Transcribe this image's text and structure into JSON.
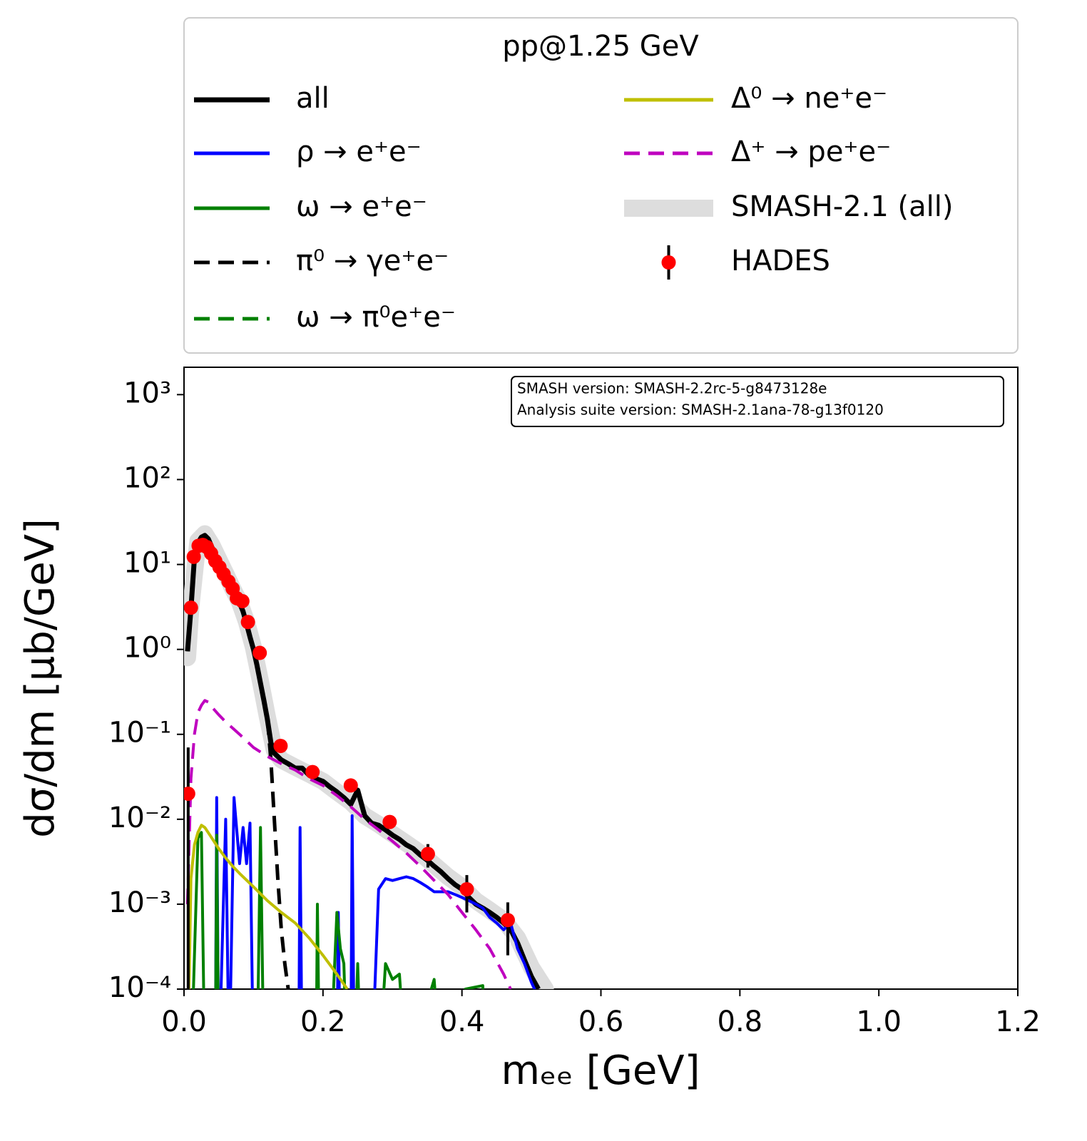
{
  "chart_data": {
    "type": "line",
    "log_y": true,
    "legend_title": "pp@1.25 GeV",
    "xlabel": "mₑₑ [GeV]",
    "ylabel": "dσ/dm [μb/GeV]",
    "annotation": [
      "SMASH version: SMASH-2.2rc-5-g8473128e",
      "Analysis suite version: SMASH-2.1ana-78-g13f0120"
    ],
    "xlim": [
      0,
      1.2
    ],
    "xticks": [
      {
        "value": 0,
        "label": "0.0"
      },
      0.2,
      0.4,
      0.6,
      0.8,
      {
        "value": 1,
        "label": "1.0"
      },
      1.2
    ],
    "ylim": [
      0.0001,
      2100
    ],
    "yticks": [
      {
        "value": 0.0001,
        "label": "10⁻⁴"
      },
      {
        "value": 0.001,
        "label": "10⁻³"
      },
      {
        "value": 0.01,
        "label": "10⁻²"
      },
      {
        "value": 0.1,
        "label": "10⁻¹"
      },
      {
        "value": 1,
        "label": "10⁰"
      },
      {
        "value": 10,
        "label": "10¹"
      },
      {
        "value": 100,
        "label": "10²"
      },
      {
        "value": 1000,
        "label": "10³"
      }
    ],
    "series": [
      {
        "name": "all",
        "color": "#000000",
        "width": 7,
        "dash": "solid",
        "x": [
          0.005,
          0.01,
          0.015,
          0.02,
          0.025,
          0.03,
          0.035,
          0.04,
          0.045,
          0.05,
          0.055,
          0.06,
          0.065,
          0.07,
          0.075,
          0.08,
          0.085,
          0.09,
          0.095,
          0.1,
          0.105,
          0.11,
          0.115,
          0.12,
          0.125,
          0.13,
          0.14,
          0.15,
          0.16,
          0.17,
          0.18,
          0.19,
          0.2,
          0.21,
          0.22,
          0.23,
          0.24,
          0.25,
          0.26,
          0.27,
          0.28,
          0.29,
          0.3,
          0.31,
          0.32,
          0.33,
          0.34,
          0.35,
          0.36,
          0.37,
          0.38,
          0.39,
          0.4,
          0.41,
          0.42,
          0.43,
          0.44,
          0.45,
          0.46,
          0.47,
          0.48,
          0.49,
          0.5,
          0.51
        ],
        "values": [
          0.95,
          3,
          12,
          18,
          21,
          22,
          20,
          16,
          13,
          11,
          9,
          7.5,
          6,
          5,
          4.2,
          3.5,
          2.8,
          2,
          1.4,
          1,
          0.65,
          0.4,
          0.25,
          0.15,
          0.08,
          0.06,
          0.05,
          0.045,
          0.04,
          0.04,
          0.033,
          0.03,
          0.028,
          0.024,
          0.021,
          0.018,
          0.015,
          0.022,
          0.011,
          0.009,
          0.0085,
          0.0075,
          0.0065,
          0.0058,
          0.005,
          0.0045,
          0.0038,
          0.0033,
          0.0028,
          0.0024,
          0.002,
          0.0017,
          0.0015,
          0.0012,
          0.001,
          0.0009,
          0.0008,
          0.0007,
          0.0006,
          0.0005,
          0.00035,
          0.00022,
          0.00014,
          0.0001
        ]
      },
      {
        "name": "ρ → e⁺e⁻",
        "color": "#0000ff",
        "width": 4,
        "dash": "solid",
        "x": [
          0.045,
          0.047,
          0.05,
          0.06,
          0.065,
          0.072,
          0.08,
          0.085,
          0.09,
          0.095,
          0.1,
          0.165,
          0.167,
          0.17,
          0.22,
          0.222,
          0.225,
          0.24,
          0.242,
          0.245,
          0.27,
          0.28,
          0.29,
          0.3,
          0.31,
          0.32,
          0.33,
          0.34,
          0.35,
          0.36,
          0.37,
          0.38,
          0.39,
          0.4,
          0.41,
          0.42,
          0.43,
          0.44,
          0.45,
          0.46,
          0.47,
          0.48,
          0.49,
          0.5,
          0.51
        ],
        "values": [
          1e-05,
          0.018,
          1e-05,
          0.01,
          1e-05,
          0.018,
          0.003,
          0.008,
          0.003,
          0.009,
          1e-05,
          1e-05,
          0.008,
          1e-05,
          1e-05,
          0.0008,
          1e-05,
          1e-05,
          0.011,
          1e-05,
          1e-05,
          0.0015,
          0.002,
          0.0019,
          0.002,
          0.0021,
          0.002,
          0.0018,
          0.0016,
          0.0014,
          0.0014,
          0.0014,
          0.0013,
          0.0012,
          0.0011,
          0.001,
          0.0009,
          0.0007,
          0.0006,
          0.0005,
          0.0006,
          0.0003,
          0.0002,
          0.00012,
          8e-05
        ]
      },
      {
        "name": "ω → e⁺e⁻",
        "color": "#008000",
        "width": 4,
        "dash": "solid",
        "x": [
          0.01,
          0.02,
          0.025,
          0.03,
          0.045,
          0.047,
          0.05,
          0.105,
          0.11,
          0.115,
          0.19,
          0.192,
          0.195,
          0.21,
          0.22,
          0.225,
          0.23,
          0.235,
          0.245,
          0.25,
          0.255,
          0.28,
          0.29,
          0.3,
          0.31,
          0.32,
          0.36,
          0.37,
          0.4,
          0.405,
          0.43,
          0.435
        ],
        "values": [
          1e-05,
          0.006,
          0.007,
          1e-05,
          1e-05,
          0.0065,
          1e-05,
          1e-05,
          0.008,
          1e-05,
          1e-05,
          0.001,
          1e-05,
          1e-05,
          0.0008,
          0.0003,
          0.0002,
          1e-05,
          1e-05,
          0.0002,
          1e-05,
          1e-05,
          0.0002,
          0.00013,
          0.00015,
          1e-05,
          0.00013,
          1e-05,
          1e-05,
          0.0001,
          0.00011,
          1e-05
        ]
      },
      {
        "name": "π⁰ → γe⁺e⁻",
        "color": "#000000",
        "width": 5,
        "dash": "dashed",
        "x": [
          0.005,
          0.01,
          0.015,
          0.02,
          0.025,
          0.03,
          0.04,
          0.05,
          0.06,
          0.07,
          0.08,
          0.09,
          0.1,
          0.11,
          0.12,
          0.125,
          0.13,
          0.135,
          0.14,
          0.145,
          0.15
        ],
        "values": [
          0.95,
          3,
          12,
          18,
          21,
          22,
          16,
          11,
          7.5,
          5,
          3.5,
          2,
          1,
          0.4,
          0.15,
          0.05,
          0.01,
          0.002,
          0.0005,
          0.0002,
          0.0001
        ]
      },
      {
        "name": "ω → π⁰e⁺e⁻",
        "color": "#008000",
        "width": 4,
        "dash": "dashed",
        "x": [
          0.4,
          0.45
        ],
        "values": [
          5e-05,
          5e-05
        ]
      },
      {
        "name": "Δ⁰ → ne⁺e⁻",
        "color": "#bfbf00",
        "width": 4,
        "dash": "solid",
        "x": [
          0.005,
          0.01,
          0.015,
          0.02,
          0.025,
          0.03,
          0.04,
          0.05,
          0.06,
          0.07,
          0.08,
          0.1,
          0.12,
          0.14,
          0.16,
          0.18,
          0.2,
          0.22,
          0.235
        ],
        "values": [
          1e-05,
          0.002,
          0.005,
          0.007,
          0.0085,
          0.008,
          0.006,
          0.0045,
          0.0035,
          0.0028,
          0.0023,
          0.0016,
          0.0011,
          0.0008,
          0.0006,
          0.0004,
          0.00025,
          0.00015,
          0.0001
        ]
      },
      {
        "name": "Δ⁺ → pe⁺e⁻",
        "color": "#bf00bf",
        "width": 4,
        "dash": "dashed",
        "x": [
          0.005,
          0.01,
          0.015,
          0.02,
          0.025,
          0.03,
          0.035,
          0.04,
          0.05,
          0.06,
          0.08,
          0.1,
          0.12,
          0.14,
          0.16,
          0.18,
          0.2,
          0.22,
          0.24,
          0.26,
          0.28,
          0.3,
          0.32,
          0.34,
          0.36,
          0.38,
          0.4,
          0.42,
          0.44,
          0.46,
          0.47
        ],
        "values": [
          0.001,
          0.03,
          0.1,
          0.18,
          0.22,
          0.25,
          0.24,
          0.21,
          0.17,
          0.14,
          0.1,
          0.07,
          0.055,
          0.045,
          0.038,
          0.03,
          0.025,
          0.019,
          0.014,
          0.01,
          0.0075,
          0.0055,
          0.004,
          0.0028,
          0.0019,
          0.0013,
          0.0008,
          0.0005,
          0.0003,
          0.00015,
          0.0001
        ]
      },
      {
        "name": "SMASH-2.1 (all)",
        "color": "#dddddd",
        "width": 24,
        "dash": "band",
        "x": [
          0.005,
          0.01,
          0.02,
          0.03,
          0.04,
          0.05,
          0.06,
          0.07,
          0.08,
          0.09,
          0.1,
          0.11,
          0.12,
          0.13,
          0.14,
          0.16,
          0.18,
          0.2,
          0.22,
          0.24,
          0.26,
          0.28,
          0.3,
          0.32,
          0.34,
          0.36,
          0.38,
          0.4,
          0.42,
          0.44,
          0.46,
          0.48,
          0.5,
          0.52
        ],
        "values": [
          0.8,
          3.2,
          19,
          23,
          17,
          11.5,
          7.8,
          5.2,
          3.6,
          2.1,
          1.05,
          0.42,
          0.16,
          0.065,
          0.05,
          0.041,
          0.034,
          0.028,
          0.021,
          0.016,
          0.011,
          0.0087,
          0.0067,
          0.0052,
          0.004,
          0.0029,
          0.0021,
          0.0016,
          0.0011,
          0.00085,
          0.00065,
          0.0004,
          0.00018,
          0.0001
        ]
      },
      {
        "name": "HADES",
        "color": "#ff0000",
        "dash": "points",
        "x": [
          0.006,
          0.01,
          0.014,
          0.021,
          0.027,
          0.033,
          0.039,
          0.045,
          0.051,
          0.057,
          0.064,
          0.07,
          0.076,
          0.084,
          0.092,
          0.109,
          0.139,
          0.185,
          0.24,
          0.296,
          0.351,
          0.407,
          0.466
        ],
        "values": [
          0.02,
          3.1,
          12.3,
          16.6,
          17,
          16,
          13.5,
          11,
          9.3,
          7.7,
          6.3,
          5.2,
          4,
          3.7,
          2.1,
          0.91,
          0.073,
          0.036,
          0.025,
          0.0093,
          0.0039,
          0.0015,
          0.00065
        ],
        "yerr": [
          0.05,
          null,
          null,
          null,
          null,
          null,
          null,
          null,
          null,
          null,
          null,
          null,
          null,
          null,
          null,
          null,
          null,
          null,
          null,
          null,
          0.0012,
          0.0007,
          0.0004
        ]
      }
    ]
  }
}
